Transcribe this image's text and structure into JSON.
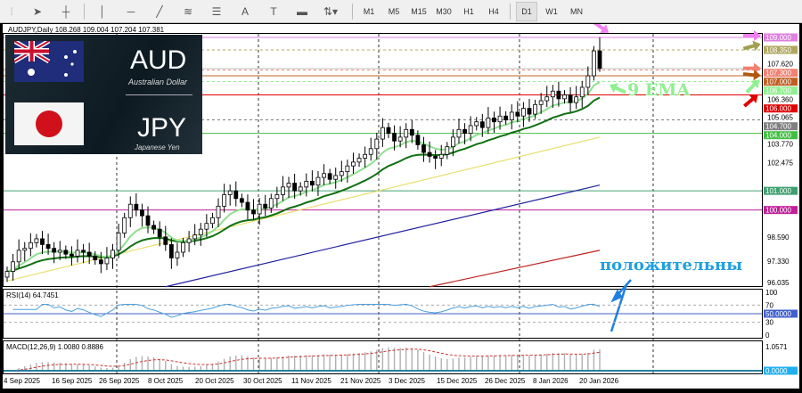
{
  "toolbar": {
    "tools": [
      "cursor-icon",
      "crosshair-icon",
      "vertical-line-icon",
      "horizontal-line-icon",
      "trendline-icon",
      "fibonacci-icon",
      "channel-icon",
      "text-icon",
      "text-label-icon",
      "rectangle-icon",
      "shapes-dropdown-icon"
    ],
    "text_tool": "A",
    "timeframes": [
      "M1",
      "M5",
      "M15",
      "M30",
      "H1",
      "H4",
      "D1",
      "W1",
      "MN"
    ],
    "active_timeframe": "D1"
  },
  "chart": {
    "title": "AUDJPY,Daily  108.268 109.004 107.204 107.381",
    "logo": {
      "base": "AUD",
      "base_name": "Australian Dollar",
      "quote": "JPY",
      "quote_name": "Japanese Yen"
    },
    "price_ticks": [
      "107.620",
      "106.360",
      "105.065",
      "103.770",
      "102.475",
      "98.590",
      "97.330",
      "96.035"
    ],
    "levels": [
      {
        "price": 109.0,
        "label": "109.000",
        "color": "#e080e0",
        "style": "solid"
      },
      {
        "price": 108.35,
        "label": "108.350",
        "color": "#b0a860",
        "style": "dash"
      },
      {
        "price": 107.3,
        "label": "107.300",
        "color": "#f08070",
        "style": "dash"
      },
      {
        "price": 107.0,
        "label": "107.000",
        "color": "#c06020",
        "style": "solid"
      },
      {
        "price": 106.7,
        "label": "106.700",
        "color": "#90f090",
        "style": "dash"
      },
      {
        "price": 106.0,
        "label": "106.000",
        "color": "#e00000",
        "style": "solid"
      },
      {
        "price": 104.7,
        "label": "104.700",
        "color": "#808080",
        "style": "dash"
      },
      {
        "price": 104.0,
        "label": "104.000",
        "color": "#40c040",
        "style": "solid"
      },
      {
        "price": 101.0,
        "label": "101.000",
        "color": "#40a070",
        "style": "solid"
      },
      {
        "price": 100.0,
        "label": "100.000",
        "color": "#c0209a",
        "style": "solid"
      }
    ],
    "current_price": 107.381,
    "closes": [
      96.8,
      97.3,
      97.9,
      98.0,
      98.3,
      98.5,
      98.2,
      98.0,
      97.8,
      97.9,
      97.7,
      97.6,
      97.9,
      97.8,
      97.6,
      97.4,
      97.2,
      97.5,
      97.9,
      98.8,
      99.6,
      100.3,
      100.0,
      99.7,
      99.2,
      99.0,
      98.6,
      98.2,
      97.5,
      97.8,
      98.3,
      98.5,
      98.7,
      99.0,
      99.3,
      99.6,
      100.2,
      100.8,
      101.0,
      100.6,
      100.4,
      100.0,
      99.8,
      100.3,
      100.1,
      100.6,
      100.8,
      101.2,
      101.4,
      101.0,
      101.2,
      101.5,
      101.3,
      101.7,
      101.9,
      101.6,
      101.8,
      102.0,
      102.3,
      102.5,
      102.7,
      102.9,
      103.2,
      103.7,
      104.3,
      104.0,
      103.6,
      103.8,
      104.2,
      103.9,
      103.4,
      103.0,
      102.8,
      102.7,
      102.9,
      103.3,
      103.8,
      104.2,
      104.0,
      104.4,
      104.6,
      104.3,
      104.8,
      104.6,
      104.9,
      104.7,
      105.1,
      104.9,
      105.3,
      105.0,
      105.5,
      105.7,
      105.9,
      106.2,
      105.8,
      106.0,
      105.6,
      105.9,
      106.4,
      107.0,
      108.3,
      107.381
    ],
    "ma_lines": [
      {
        "name": "yellow-ma",
        "color": "#e8e070",
        "from": 96.3,
        "to": 103.8,
        "start_index": 0
      },
      {
        "name": "blue-ma",
        "color": "#2020a0",
        "from": 96.0,
        "to": 101.3,
        "start_index": 27
      },
      {
        "name": "red-ma",
        "color": "#c02020",
        "from": 96.0,
        "to": 97.9,
        "start_index": 72
      }
    ],
    "annotations": {
      "ema": "9 EMA",
      "positive": "положительны"
    }
  },
  "rsi": {
    "label": "RSI(14) 64.7451",
    "levels": [
      "100",
      "70",
      "50.0000",
      "30",
      "0"
    ]
  },
  "macd": {
    "label": "MACD(12,26,9) 1.0080 0.8886",
    "ticks": [
      "1.0571",
      "0.0000"
    ]
  },
  "dates": [
    "4 Sep 2025",
    "16 Sep 2025",
    "26 Sep 2025",
    "8 Oct 2025",
    "20 Oct 2025",
    "30 Oct 2025",
    "11 Nov 2025",
    "21 Nov 2025",
    "3 Dec 2025",
    "15 Dec 2025",
    "26 Dec 2025",
    "8 Jan 2026",
    "20 Jan 2026"
  ]
}
